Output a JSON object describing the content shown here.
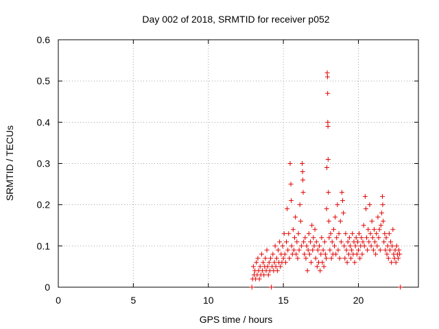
{
  "chart_data": {
    "type": "scatter",
    "title": "Day 002 of 2018, SRMTID for receiver p052",
    "xlabel": "GPS time / hours",
    "ylabel": "SRMTID / TECUs",
    "xlim": [
      0,
      24
    ],
    "ylim": [
      0,
      0.6
    ],
    "xticks": [
      0,
      5,
      10,
      15,
      20
    ],
    "xtick_labels": [
      "0",
      "5",
      "10",
      "15",
      "20"
    ],
    "yticks": [
      0,
      0.1,
      0.2,
      0.3,
      0.4,
      0.5,
      0.6
    ],
    "ytick_labels": [
      "0",
      "0.1",
      "0.2",
      "0.3",
      "0.4",
      "0.5",
      "0.6"
    ],
    "grid": true,
    "marker": "+",
    "color": "#e00000",
    "series": [
      {
        "name": "SRMTID",
        "points": [
          [
            12.9,
            0.0
          ],
          [
            14.2,
            0.0
          ],
          [
            22.8,
            0.0
          ],
          [
            12.95,
            0.02
          ],
          [
            13.0,
            0.05
          ],
          [
            13.05,
            0.03
          ],
          [
            13.1,
            0.04
          ],
          [
            13.15,
            0.02
          ],
          [
            13.2,
            0.06
          ],
          [
            13.25,
            0.03
          ],
          [
            13.3,
            0.07
          ],
          [
            13.35,
            0.04
          ],
          [
            13.4,
            0.02
          ],
          [
            13.45,
            0.05
          ],
          [
            13.5,
            0.03
          ],
          [
            13.55,
            0.08
          ],
          [
            13.6,
            0.04
          ],
          [
            13.65,
            0.06
          ],
          [
            13.7,
            0.03
          ],
          [
            13.75,
            0.05
          ],
          [
            13.8,
            0.07
          ],
          [
            13.85,
            0.04
          ],
          [
            13.9,
            0.09
          ],
          [
            13.95,
            0.05
          ],
          [
            14.0,
            0.03
          ],
          [
            14.05,
            0.06
          ],
          [
            14.1,
            0.04
          ],
          [
            14.15,
            0.07
          ],
          [
            14.25,
            0.05
          ],
          [
            14.3,
            0.08
          ],
          [
            14.35,
            0.04
          ],
          [
            14.4,
            0.06
          ],
          [
            14.45,
            0.1
          ],
          [
            14.5,
            0.05
          ],
          [
            14.55,
            0.07
          ],
          [
            14.6,
            0.04
          ],
          [
            14.65,
            0.09
          ],
          [
            14.7,
            0.06
          ],
          [
            14.75,
            0.11
          ],
          [
            14.8,
            0.05
          ],
          [
            14.85,
            0.08
          ],
          [
            14.9,
            0.06
          ],
          [
            14.95,
            0.1
          ],
          [
            15.0,
            0.07
          ],
          [
            15.05,
            0.13
          ],
          [
            15.1,
            0.08
          ],
          [
            15.15,
            0.06
          ],
          [
            15.2,
            0.11
          ],
          [
            15.25,
            0.19
          ],
          [
            15.3,
            0.09
          ],
          [
            15.35,
            0.13
          ],
          [
            15.4,
            0.07
          ],
          [
            15.45,
            0.3
          ],
          [
            15.5,
            0.25
          ],
          [
            15.52,
            0.21
          ],
          [
            15.55,
            0.1
          ],
          [
            15.6,
            0.08
          ],
          [
            15.65,
            0.14
          ],
          [
            15.7,
            0.09
          ],
          [
            15.75,
            0.12
          ],
          [
            15.8,
            0.17
          ],
          [
            15.85,
            0.08
          ],
          [
            15.9,
            0.11
          ],
          [
            15.95,
            0.07
          ],
          [
            16.0,
            0.13
          ],
          [
            16.05,
            0.09
          ],
          [
            16.1,
            0.2
          ],
          [
            16.15,
            0.16
          ],
          [
            16.2,
            0.1
          ],
          [
            16.25,
            0.3
          ],
          [
            16.28,
            0.28
          ],
          [
            16.3,
            0.26
          ],
          [
            16.32,
            0.23
          ],
          [
            16.35,
            0.11
          ],
          [
            16.4,
            0.08
          ],
          [
            16.45,
            0.12
          ],
          [
            16.5,
            0.07
          ],
          [
            16.55,
            0.1
          ],
          [
            16.6,
            0.04
          ],
          [
            16.65,
            0.09
          ],
          [
            16.7,
            0.13
          ],
          [
            16.75,
            0.08
          ],
          [
            16.8,
            0.11
          ],
          [
            16.85,
            0.06
          ],
          [
            16.9,
            0.15
          ],
          [
            16.95,
            0.09
          ],
          [
            17.0,
            0.12
          ],
          [
            17.05,
            0.1
          ],
          [
            17.1,
            0.14
          ],
          [
            17.15,
            0.07
          ],
          [
            17.2,
            0.11
          ],
          [
            17.25,
            0.05
          ],
          [
            17.3,
            0.09
          ],
          [
            17.35,
            0.06
          ],
          [
            17.4,
            0.1
          ],
          [
            17.45,
            0.04
          ],
          [
            17.5,
            0.08
          ],
          [
            17.55,
            0.12
          ],
          [
            17.6,
            0.06
          ],
          [
            17.65,
            0.09
          ],
          [
            17.7,
            0.05
          ],
          [
            17.75,
            0.11
          ],
          [
            17.8,
            0.08
          ],
          [
            17.85,
            0.07
          ],
          [
            17.88,
            0.19
          ],
          [
            17.9,
            0.29
          ],
          [
            17.92,
            0.52
          ],
          [
            17.94,
            0.51
          ],
          [
            17.95,
            0.47
          ],
          [
            17.96,
            0.4
          ],
          [
            17.97,
            0.39
          ],
          [
            17.98,
            0.31
          ],
          [
            18.0,
            0.23
          ],
          [
            18.03,
            0.16
          ],
          [
            18.05,
            0.12
          ],
          [
            18.1,
            0.09
          ],
          [
            18.15,
            0.13
          ],
          [
            18.2,
            0.07
          ],
          [
            18.25,
            0.11
          ],
          [
            18.3,
            0.08
          ],
          [
            18.35,
            0.14
          ],
          [
            18.4,
            0.1
          ],
          [
            18.45,
            0.17
          ],
          [
            18.5,
            0.08
          ],
          [
            18.55,
            0.12
          ],
          [
            18.6,
            0.2
          ],
          [
            18.65,
            0.09
          ],
          [
            18.7,
            0.13
          ],
          [
            18.75,
            0.07
          ],
          [
            18.8,
            0.16
          ],
          [
            18.85,
            0.11
          ],
          [
            18.9,
            0.23
          ],
          [
            18.95,
            0.21
          ],
          [
            19.0,
            0.18
          ],
          [
            19.05,
            0.1
          ],
          [
            19.1,
            0.07
          ],
          [
            19.15,
            0.13
          ],
          [
            19.2,
            0.09
          ],
          [
            19.25,
            0.06
          ],
          [
            19.3,
            0.11
          ],
          [
            19.35,
            0.08
          ],
          [
            19.4,
            0.12
          ],
          [
            19.45,
            0.1
          ],
          [
            19.5,
            0.07
          ],
          [
            19.55,
            0.09
          ],
          [
            19.6,
            0.13
          ],
          [
            19.65,
            0.08
          ],
          [
            19.7,
            0.11
          ],
          [
            19.75,
            0.06
          ],
          [
            19.8,
            0.1
          ],
          [
            19.85,
            0.12
          ],
          [
            19.9,
            0.08
          ],
          [
            19.95,
            0.11
          ],
          [
            20.0,
            0.09
          ],
          [
            20.05,
            0.13
          ],
          [
            20.1,
            0.07
          ],
          [
            20.15,
            0.1
          ],
          [
            20.2,
            0.12
          ],
          [
            20.25,
            0.08
          ],
          [
            20.3,
            0.11
          ],
          [
            20.35,
            0.15
          ],
          [
            20.4,
            0.1
          ],
          [
            20.45,
            0.22
          ],
          [
            20.5,
            0.19
          ],
          [
            20.55,
            0.12
          ],
          [
            20.6,
            0.09
          ],
          [
            20.65,
            0.14
          ],
          [
            20.7,
            0.11
          ],
          [
            20.75,
            0.2
          ],
          [
            20.8,
            0.13
          ],
          [
            20.85,
            0.1
          ],
          [
            20.9,
            0.16
          ],
          [
            20.95,
            0.12
          ],
          [
            21.0,
            0.09
          ],
          [
            21.05,
            0.14
          ],
          [
            21.1,
            0.11
          ],
          [
            21.15,
            0.08
          ],
          [
            21.2,
            0.13
          ],
          [
            21.25,
            0.1
          ],
          [
            21.3,
            0.17
          ],
          [
            21.35,
            0.12
          ],
          [
            21.4,
            0.14
          ],
          [
            21.45,
            0.09
          ],
          [
            21.5,
            0.15
          ],
          [
            21.55,
            0.18
          ],
          [
            21.6,
            0.22
          ],
          [
            21.62,
            0.2
          ],
          [
            21.65,
            0.16
          ],
          [
            21.7,
            0.11
          ],
          [
            21.75,
            0.13
          ],
          [
            21.8,
            0.09
          ],
          [
            21.85,
            0.12
          ],
          [
            21.9,
            0.08
          ],
          [
            21.95,
            0.1
          ],
          [
            22.0,
            0.07
          ],
          [
            22.05,
            0.13
          ],
          [
            22.1,
            0.09
          ],
          [
            22.15,
            0.11
          ],
          [
            22.2,
            0.06
          ],
          [
            22.25,
            0.1
          ],
          [
            22.3,
            0.14
          ],
          [
            22.35,
            0.08
          ],
          [
            22.4,
            0.07
          ],
          [
            22.45,
            0.09
          ],
          [
            22.5,
            0.06
          ],
          [
            22.55,
            0.1
          ],
          [
            22.6,
            0.08
          ],
          [
            22.65,
            0.07
          ],
          [
            22.7,
            0.09
          ],
          [
            22.75,
            0.08
          ]
        ]
      }
    ]
  }
}
